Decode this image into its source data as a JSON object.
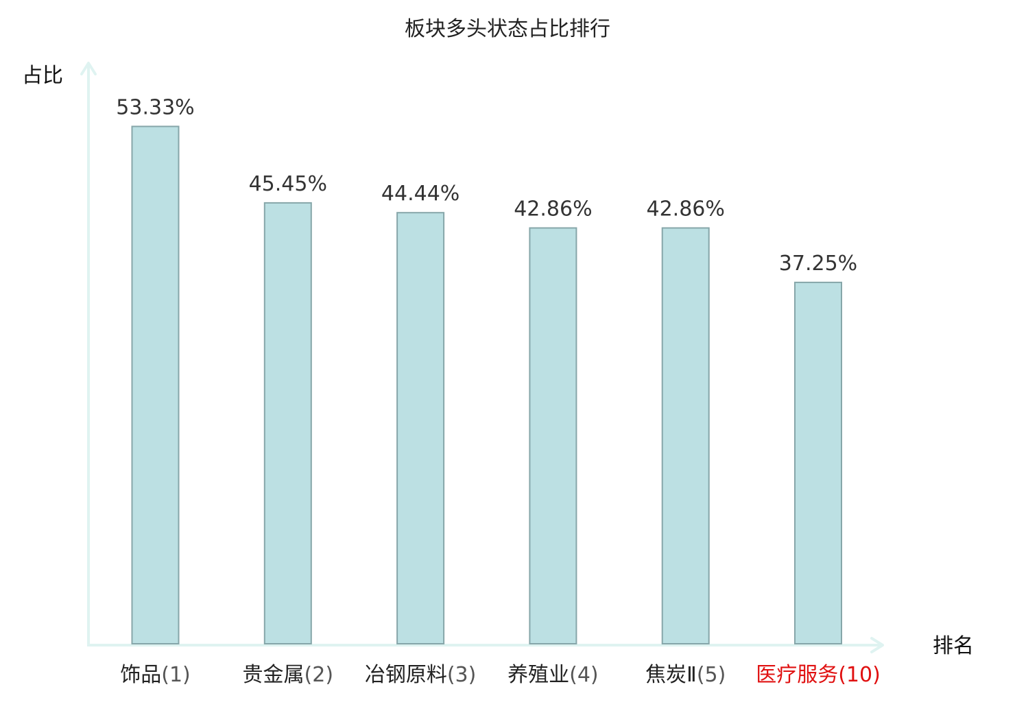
{
  "chart_data": {
    "type": "bar",
    "title": "板块多头状态占比排行",
    "xlabel": "排名",
    "ylabel": "占比",
    "categories": [
      {
        "name": "饰品",
        "rank": "(1)",
        "highlight": false
      },
      {
        "name": "贵金属",
        "rank": "(2)",
        "highlight": false
      },
      {
        "name": "冶钢原料",
        "rank": "(3)",
        "highlight": false
      },
      {
        "name": "养殖业",
        "rank": "(4)",
        "highlight": false
      },
      {
        "name": "焦炭Ⅱ",
        "rank": "(5)",
        "highlight": false
      },
      {
        "name": "医疗服务",
        "rank": "(10)",
        "highlight": true
      }
    ],
    "values": [
      53.33,
      45.45,
      44.44,
      42.86,
      42.86,
      37.25
    ],
    "value_labels": [
      "53.33%",
      "45.45%",
      "44.44%",
      "42.86%",
      "42.86%",
      "37.25%"
    ],
    "ylim": [
      0,
      60
    ],
    "grid": false,
    "legend": "none",
    "colors": {
      "bar_fill": "#bce0e3",
      "bar_stroke": "#86a6a9",
      "axis": "#dff3f1",
      "category_text": "#222222",
      "rank_text": "#555555",
      "highlight_text": "#e01010"
    }
  }
}
